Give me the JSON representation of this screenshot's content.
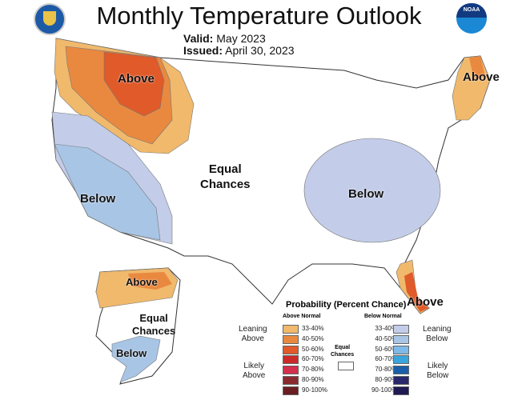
{
  "title": "Monthly Temperature Outlook",
  "valid_label": "Valid:",
  "valid_value": "May 2023",
  "issued_label": "Issued:",
  "issued_value": "April 30, 2023",
  "logos": {
    "left": "commerce-seal",
    "right": "NOAA"
  },
  "map_labels": {
    "above_nw": "Above",
    "above_ne": "Above",
    "above_fl": "Above",
    "above_ak": "Above",
    "below_sw": "Below",
    "below_se": "Below",
    "below_ak": "Below",
    "equal_conus": [
      "Equal",
      "Chances"
    ],
    "equal_ak": [
      "Equal",
      "Chances"
    ]
  },
  "legend": {
    "title": "Probability (Percent Chance)",
    "above_header": "Above Normal",
    "below_header": "Below Normal",
    "leaning_above": [
      "Leaning",
      "Above"
    ],
    "likely_above": [
      "Likely",
      "Above"
    ],
    "leaning_below": [
      "Leaning",
      "Below"
    ],
    "likely_below": [
      "Likely",
      "Below"
    ],
    "equal": [
      "Equal",
      "Chances"
    ],
    "ranges": [
      "33-40%",
      "40-50%",
      "50-60%",
      "60-70%",
      "70-80%",
      "80-90%",
      "90-100%"
    ],
    "above_colors": [
      "#f0b96c",
      "#e9893f",
      "#e05a2a",
      "#cc2a2a",
      "#d42f4c",
      "#8a2a30",
      "#6a1e22"
    ],
    "below_colors": [
      "#c3cde9",
      "#a8c5e5",
      "#7fb9e7",
      "#3aa5dc",
      "#1a5fa8",
      "#2a286c",
      "#1f1a52"
    ]
  }
}
